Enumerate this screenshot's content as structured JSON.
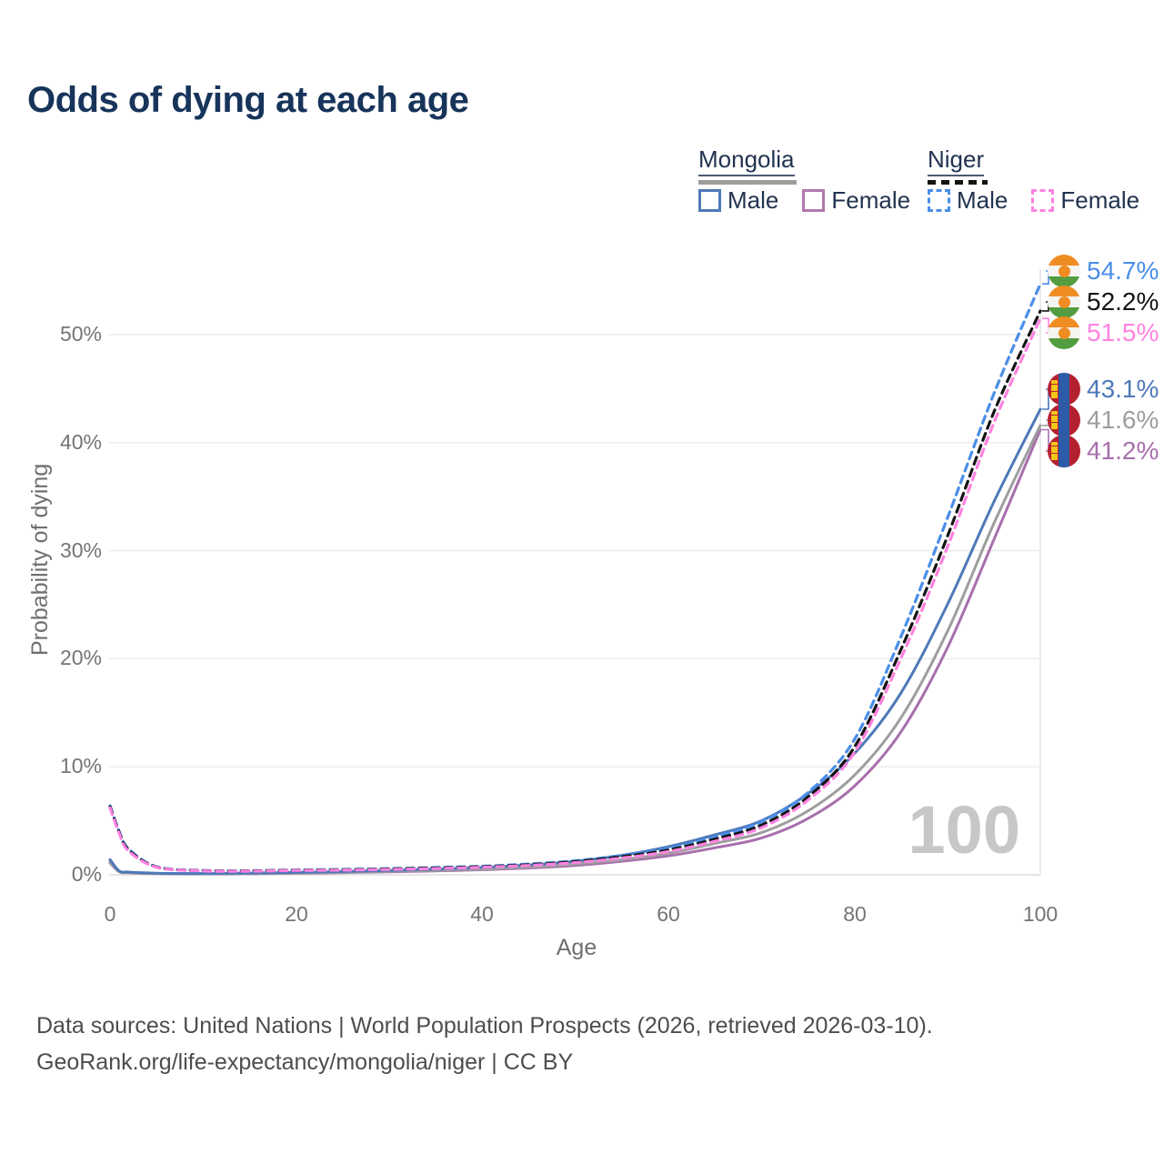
{
  "title": "Odds of dying at each age",
  "watermark": "100",
  "legend": {
    "countries": [
      {
        "name": "Mongolia",
        "line_color": "#9e9e9e",
        "dashed": false,
        "items": [
          {
            "label": "Male",
            "color": "#4e79b8"
          },
          {
            "label": "Female",
            "color": "#b178ae"
          }
        ]
      },
      {
        "name": "Niger",
        "line_color": "#141414",
        "dashed": true,
        "items": [
          {
            "label": "Male",
            "color": "#4a8ee8"
          },
          {
            "label": "Female",
            "color": "#ff82e0"
          }
        ]
      }
    ]
  },
  "axes": {
    "x": {
      "label": "Age",
      "ticks": [
        "0",
        "20",
        "40",
        "60",
        "80",
        "100"
      ],
      "range": [
        0,
        100
      ]
    },
    "y": {
      "label": "Probability of dying",
      "ticks": [
        "0%",
        "10%",
        "20%",
        "30%",
        "40%",
        "50%"
      ],
      "range_pct": [
        0,
        56
      ]
    }
  },
  "footer": {
    "line1": "Data sources: United Nations | World Population Prospects (2026, retrieved 2026-03-10).",
    "line2": "GeoRank.org/life-expectancy/mongolia/niger | CC BY"
  },
  "chart_data": {
    "type": "line",
    "title": "Odds of dying at each age",
    "xlabel": "Age",
    "ylabel": "Probability of dying",
    "xlim": [
      0,
      100
    ],
    "ylim_pct": [
      0,
      56
    ],
    "grid": true,
    "legend_position": "top-right",
    "hovered_age": "100",
    "x": [
      0,
      1,
      2,
      5,
      10,
      15,
      20,
      25,
      30,
      35,
      40,
      45,
      50,
      55,
      60,
      65,
      70,
      75,
      80,
      85,
      90,
      95,
      100
    ],
    "series": [
      {
        "name": "Niger Male",
        "country": "Niger",
        "sex": "Male",
        "color": "#4a8ee8",
        "dashed": true,
        "end_label": "54.7%",
        "flag": "niger",
        "values": [
          6.4,
          4.0,
          2.4,
          0.75,
          0.4,
          0.38,
          0.45,
          0.5,
          0.58,
          0.68,
          0.8,
          1.0,
          1.3,
          1.8,
          2.45,
          3.5,
          4.9,
          7.6,
          12.5,
          22.0,
          33.0,
          44.5,
          54.7
        ]
      },
      {
        "name": "Niger Both sexes",
        "country": "Niger",
        "sex": "Both",
        "color": "#141414",
        "dashed": true,
        "end_label": "52.2%",
        "flag": "niger",
        "values": [
          6.3,
          3.9,
          2.3,
          0.72,
          0.38,
          0.36,
          0.42,
          0.47,
          0.54,
          0.63,
          0.75,
          0.93,
          1.22,
          1.68,
          2.3,
          3.3,
          4.6,
          7.2,
          11.8,
          20.8,
          31.3,
          42.8,
          52.2
        ]
      },
      {
        "name": "Niger Female",
        "country": "Niger",
        "sex": "Female",
        "color": "#ff82e0",
        "dashed": true,
        "end_label": "51.5%",
        "flag": "niger",
        "values": [
          6.2,
          3.8,
          2.2,
          0.7,
          0.36,
          0.34,
          0.4,
          0.44,
          0.5,
          0.58,
          0.7,
          0.87,
          1.13,
          1.55,
          2.15,
          3.1,
          4.35,
          6.9,
          11.3,
          20.0,
          30.3,
          41.8,
          51.5
        ]
      },
      {
        "name": "Mongolia Male",
        "country": "Mongolia",
        "sex": "Male",
        "color": "#4e79b8",
        "dashed": false,
        "end_label": "43.1%",
        "flag": "mongolia",
        "values": [
          1.4,
          0.35,
          0.25,
          0.15,
          0.12,
          0.16,
          0.22,
          0.3,
          0.4,
          0.52,
          0.68,
          0.9,
          1.25,
          1.8,
          2.6,
          3.7,
          5.0,
          7.5,
          11.2,
          16.8,
          25.0,
          34.5,
          43.1
        ]
      },
      {
        "name": "Mongolia Both sexes",
        "country": "Mongolia",
        "sex": "Both",
        "color": "#9e9e9e",
        "dashed": false,
        "end_label": "41.6%",
        "flag": "mongolia",
        "values": [
          1.2,
          0.3,
          0.21,
          0.13,
          0.1,
          0.13,
          0.17,
          0.23,
          0.31,
          0.41,
          0.54,
          0.72,
          1.0,
          1.4,
          2.0,
          2.9,
          3.9,
          5.9,
          9.2,
          14.5,
          22.5,
          32.5,
          41.6
        ]
      },
      {
        "name": "Mongolia Female",
        "country": "Mongolia",
        "sex": "Female",
        "color": "#a86fad",
        "dashed": false,
        "end_label": "41.2%",
        "flag": "mongolia",
        "values": [
          1.1,
          0.28,
          0.19,
          0.12,
          0.09,
          0.11,
          0.15,
          0.2,
          0.27,
          0.36,
          0.47,
          0.63,
          0.87,
          1.25,
          1.75,
          2.5,
          3.4,
          5.2,
          8.2,
          13.2,
          21.0,
          31.0,
          41.2
        ]
      }
    ]
  }
}
